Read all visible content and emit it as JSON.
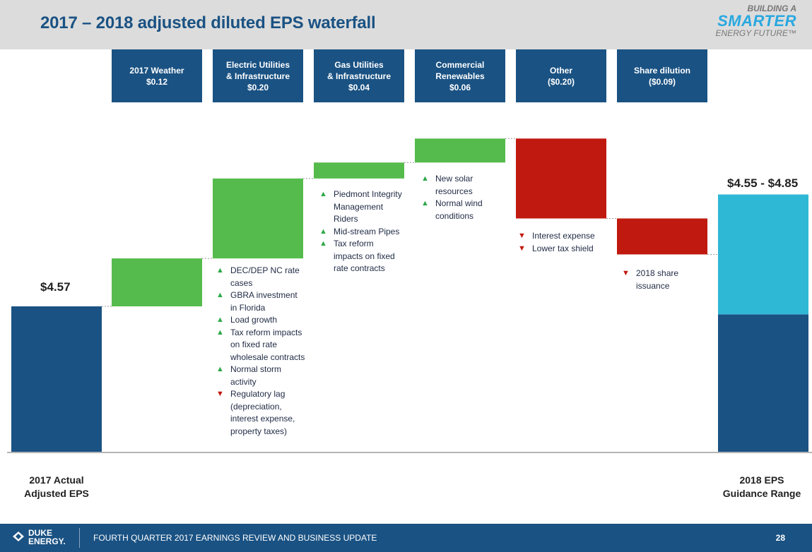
{
  "header": {
    "title": "2017 – 2018 adjusted diluted EPS waterfall",
    "logo": {
      "line1": "BUILDING A",
      "line2": "SMARTER",
      "line3": "ENERGY FUTURE™"
    }
  },
  "chart_data": {
    "type": "bar",
    "subtype": "waterfall",
    "start": {
      "label_lines": [
        "2017 Actual",
        "Adjusted EPS"
      ],
      "value": 4.57,
      "value_label": "$4.57"
    },
    "steps": [
      {
        "name_lines": [
          "2017 Weather"
        ],
        "value": 0.12,
        "value_label": "$0.12"
      },
      {
        "name_lines": [
          "Electric Utilities",
          "& Infrastructure"
        ],
        "value": 0.2,
        "value_label": "$0.20"
      },
      {
        "name_lines": [
          "Gas Utilities",
          "& Infrastructure"
        ],
        "value": 0.04,
        "value_label": "$0.04"
      },
      {
        "name_lines": [
          "Commercial",
          "Renewables"
        ],
        "value": 0.06,
        "value_label": "$0.06"
      },
      {
        "name_lines": [
          "Other"
        ],
        "value": -0.2,
        "value_label": "($0.20)"
      },
      {
        "name_lines": [
          "Share dilution"
        ],
        "value": -0.09,
        "value_label": "($0.09)"
      }
    ],
    "end": {
      "label_lines": [
        "2018 EPS",
        "Guidance Range"
      ],
      "low": 4.55,
      "high": 4.85,
      "value_label": "$4.55 - $4.85"
    },
    "colors": {
      "start": "#1a5283",
      "positive": "#55bb4c",
      "negative": "#c0190f",
      "range_low": "#1a5283",
      "range_high": "#2fb8d6"
    }
  },
  "notes": {
    "electric": [
      {
        "dir": "up",
        "lines": [
          "DEC/DEP NC rate",
          "cases"
        ]
      },
      {
        "dir": "up",
        "lines": [
          "GBRA investment",
          "in Florida"
        ]
      },
      {
        "dir": "up",
        "lines": [
          "Load growth"
        ]
      },
      {
        "dir": "up",
        "lines": [
          "Tax reform impacts",
          "on fixed rate",
          "wholesale contracts"
        ]
      },
      {
        "dir": "up",
        "lines": [
          "Normal storm",
          "activity"
        ]
      },
      {
        "dir": "down",
        "lines": [
          "Regulatory lag",
          "(depreciation,",
          "interest expense,",
          "property taxes)"
        ]
      }
    ],
    "gas": [
      {
        "dir": "up",
        "lines": [
          "Piedmont Integrity",
          "Management",
          "Riders"
        ]
      },
      {
        "dir": "up",
        "lines": [
          "Mid-stream Pipes"
        ]
      },
      {
        "dir": "up",
        "lines": [
          "Tax reform",
          "impacts on fixed",
          "rate contracts"
        ]
      }
    ],
    "commercial": [
      {
        "dir": "up",
        "lines": [
          "New solar",
          "resources"
        ]
      },
      {
        "dir": "up",
        "lines": [
          "Normal wind",
          "conditions"
        ]
      }
    ],
    "other": [
      {
        "dir": "down",
        "lines": [
          "Interest expense"
        ]
      },
      {
        "dir": "down",
        "lines": [
          "Lower tax shield"
        ]
      }
    ],
    "dilution": [
      {
        "dir": "down",
        "lines": [
          "2018 share",
          "issuance"
        ]
      }
    ]
  },
  "footer": {
    "logo_line1": "DUKE",
    "logo_line2": "ENERGY.",
    "text": "FOURTH QUARTER 2017 EARNINGS REVIEW AND BUSINESS UPDATE",
    "page": "28"
  }
}
